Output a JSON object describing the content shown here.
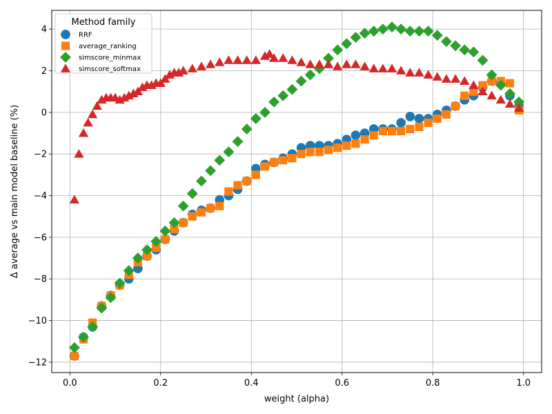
{
  "chart_data": {
    "type": "scatter",
    "title": "",
    "xlabel": "weight (alpha)",
    "ylabel": "Δ average vs main model baseline (%)",
    "xlim": [
      -0.04,
      1.04
    ],
    "ylim": [
      -12.5,
      4.9
    ],
    "xticks": [
      0.0,
      0.2,
      0.4,
      0.6,
      0.8,
      1.0
    ],
    "xtick_labels": [
      "0.0",
      "0.2",
      "0.4",
      "0.6",
      "0.8",
      "1.0"
    ],
    "yticks": [
      -12,
      -10,
      -8,
      -6,
      -4,
      -2,
      0,
      2,
      4
    ],
    "ytick_labels": [
      "−12",
      "−10",
      "−8",
      "−6",
      "−4",
      "−2",
      "0",
      "2",
      "4"
    ],
    "grid": true,
    "legend": {
      "title": "Method family",
      "placement": "top-left"
    },
    "series": [
      {
        "name": "RRF",
        "color": "#1f77b4",
        "marker": "circle",
        "x": [
          0.01,
          0.03,
          0.05,
          0.07,
          0.09,
          0.11,
          0.13,
          0.15,
          0.17,
          0.19,
          0.21,
          0.23,
          0.25,
          0.27,
          0.29,
          0.31,
          0.33,
          0.35,
          0.37,
          0.39,
          0.41,
          0.43,
          0.45,
          0.47,
          0.49,
          0.51,
          0.53,
          0.55,
          0.57,
          0.59,
          0.61,
          0.63,
          0.65,
          0.67,
          0.69,
          0.71,
          0.73,
          0.75,
          0.77,
          0.79,
          0.81,
          0.83,
          0.85,
          0.87,
          0.89,
          0.91,
          0.93,
          0.95,
          0.97,
          0.99
        ],
        "y": [
          -11.7,
          -10.8,
          -10.3,
          -9.3,
          -8.8,
          -8.3,
          -8.0,
          -7.5,
          -6.9,
          -6.6,
          -6.1,
          -5.7,
          -5.3,
          -4.9,
          -4.7,
          -4.6,
          -4.2,
          -4.0,
          -3.7,
          -3.3,
          -2.7,
          -2.5,
          -2.4,
          -2.2,
          -2.0,
          -1.7,
          -1.6,
          -1.6,
          -1.6,
          -1.5,
          -1.3,
          -1.1,
          -1.0,
          -0.8,
          -0.8,
          -0.8,
          -0.5,
          -0.2,
          -0.3,
          -0.3,
          -0.1,
          0.1,
          0.3,
          0.6,
          0.8,
          1.2,
          1.5,
          1.4,
          0.8,
          0.3
        ]
      },
      {
        "name": "average_ranking",
        "color": "#ff7f0e",
        "marker": "square",
        "x": [
          0.01,
          0.03,
          0.05,
          0.07,
          0.09,
          0.11,
          0.13,
          0.15,
          0.17,
          0.19,
          0.21,
          0.23,
          0.25,
          0.27,
          0.29,
          0.31,
          0.33,
          0.35,
          0.37,
          0.39,
          0.41,
          0.43,
          0.45,
          0.47,
          0.49,
          0.51,
          0.53,
          0.55,
          0.57,
          0.59,
          0.61,
          0.63,
          0.65,
          0.67,
          0.69,
          0.71,
          0.73,
          0.75,
          0.77,
          0.79,
          0.81,
          0.83,
          0.85,
          0.87,
          0.89,
          0.91,
          0.93,
          0.95,
          0.97,
          0.99
        ],
        "y": [
          -11.7,
          -10.9,
          -10.1,
          -9.3,
          -8.8,
          -8.3,
          -7.8,
          -7.2,
          -6.9,
          -6.5,
          -6.1,
          -5.6,
          -5.3,
          -5.0,
          -4.8,
          -4.6,
          -4.5,
          -3.8,
          -3.5,
          -3.3,
          -3.0,
          -2.6,
          -2.4,
          -2.3,
          -2.2,
          -2.0,
          -1.9,
          -1.9,
          -1.8,
          -1.7,
          -1.6,
          -1.5,
          -1.3,
          -1.1,
          -0.9,
          -0.9,
          -0.9,
          -0.8,
          -0.7,
          -0.5,
          -0.3,
          -0.1,
          0.3,
          0.8,
          1.0,
          1.3,
          1.5,
          1.5,
          1.4,
          0.1
        ]
      },
      {
        "name": "simscore_minmax",
        "color": "#2ca02c",
        "marker": "diamond",
        "x": [
          0.01,
          0.03,
          0.05,
          0.07,
          0.09,
          0.11,
          0.13,
          0.15,
          0.17,
          0.19,
          0.21,
          0.23,
          0.25,
          0.27,
          0.29,
          0.31,
          0.33,
          0.35,
          0.37,
          0.39,
          0.41,
          0.43,
          0.45,
          0.47,
          0.49,
          0.51,
          0.53,
          0.55,
          0.57,
          0.59,
          0.61,
          0.63,
          0.65,
          0.67,
          0.69,
          0.71,
          0.73,
          0.75,
          0.77,
          0.79,
          0.81,
          0.83,
          0.85,
          0.87,
          0.89,
          0.91,
          0.93,
          0.95,
          0.97,
          0.99
        ],
        "y": [
          -11.3,
          -10.8,
          -10.3,
          -9.4,
          -8.9,
          -8.2,
          -7.6,
          -7.0,
          -6.6,
          -6.2,
          -5.7,
          -5.3,
          -4.5,
          -3.9,
          -3.3,
          -2.8,
          -2.3,
          -1.9,
          -1.4,
          -0.8,
          -0.3,
          0.0,
          0.5,
          0.8,
          1.1,
          1.5,
          1.8,
          2.1,
          2.6,
          3.0,
          3.3,
          3.6,
          3.8,
          3.9,
          4.0,
          4.1,
          4.0,
          3.9,
          3.9,
          3.9,
          3.7,
          3.4,
          3.2,
          3.0,
          2.9,
          2.5,
          1.8,
          1.3,
          0.9,
          0.5
        ]
      },
      {
        "name": "simscore_softmax",
        "color": "#d62728",
        "marker": "triangle",
        "x": [
          0.01,
          0.02,
          0.03,
          0.04,
          0.05,
          0.06,
          0.07,
          0.08,
          0.09,
          0.1,
          0.11,
          0.12,
          0.13,
          0.14,
          0.15,
          0.16,
          0.17,
          0.18,
          0.19,
          0.2,
          0.21,
          0.22,
          0.23,
          0.24,
          0.25,
          0.27,
          0.29,
          0.31,
          0.33,
          0.35,
          0.37,
          0.39,
          0.41,
          0.43,
          0.44,
          0.45,
          0.47,
          0.49,
          0.51,
          0.53,
          0.55,
          0.57,
          0.59,
          0.61,
          0.63,
          0.65,
          0.67,
          0.69,
          0.71,
          0.73,
          0.75,
          0.77,
          0.79,
          0.81,
          0.83,
          0.85,
          0.87,
          0.89,
          0.91,
          0.93,
          0.95,
          0.97,
          0.99
        ],
        "y": [
          -4.2,
          -2.0,
          -1.0,
          -0.5,
          -0.1,
          0.3,
          0.6,
          0.7,
          0.7,
          0.7,
          0.6,
          0.7,
          0.8,
          0.9,
          1.0,
          1.2,
          1.3,
          1.3,
          1.4,
          1.4,
          1.6,
          1.8,
          1.9,
          1.9,
          2.0,
          2.1,
          2.2,
          2.3,
          2.4,
          2.5,
          2.5,
          2.5,
          2.5,
          2.7,
          2.8,
          2.6,
          2.6,
          2.5,
          2.4,
          2.3,
          2.3,
          2.3,
          2.2,
          2.3,
          2.3,
          2.2,
          2.1,
          2.1,
          2.1,
          2.0,
          1.9,
          1.9,
          1.8,
          1.7,
          1.6,
          1.6,
          1.5,
          1.3,
          1.0,
          0.8,
          0.6,
          0.4,
          0.2
        ]
      }
    ]
  }
}
